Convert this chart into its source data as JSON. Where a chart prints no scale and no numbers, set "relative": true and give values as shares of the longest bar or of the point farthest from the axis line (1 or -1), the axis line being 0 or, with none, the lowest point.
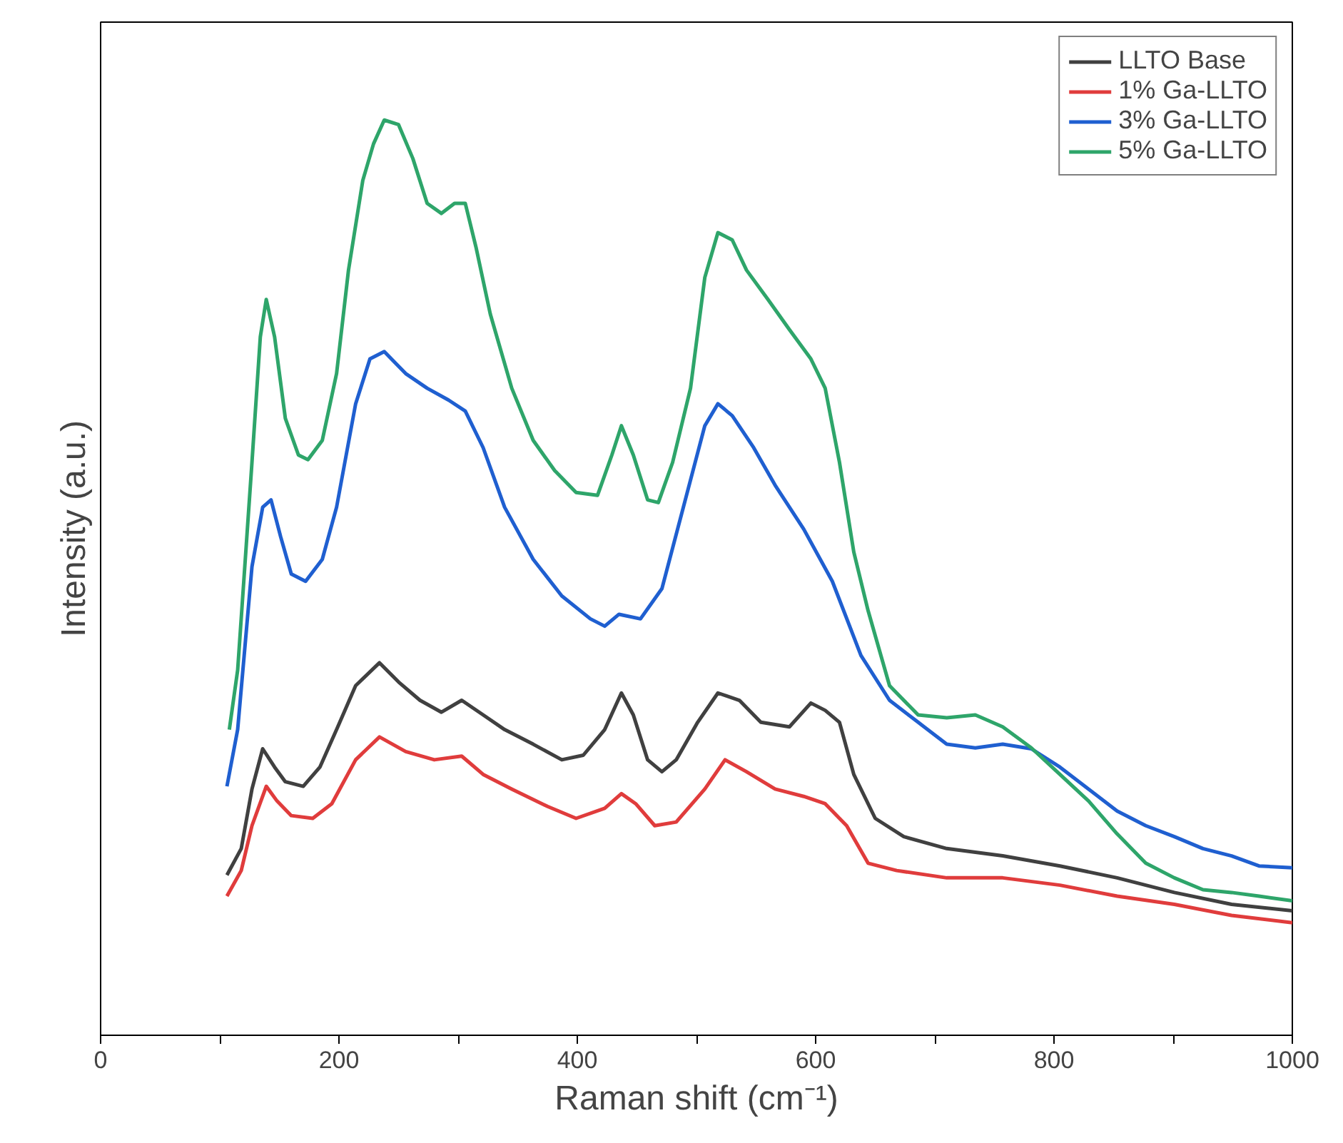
{
  "chart_data": {
    "type": "line",
    "relative": true,
    "xlabel": "Raman shift (cm⁻¹)",
    "ylabel": "Intensity (a.u.)",
    "xlim": [
      0,
      1000
    ],
    "xticks": [
      0,
      {
        "value": 100,
        "label": null
      },
      200,
      {
        "value": 300,
        "label": null
      },
      400,
      {
        "value": 500,
        "label": null
      },
      600,
      {
        "value": 700,
        "label": null
      },
      800,
      {
        "value": 900,
        "label": null
      },
      1000
    ],
    "grid": false,
    "legend": "top right",
    "line_style": "solid",
    "series": [
      {
        "name": "LLTO Base",
        "color": "#404040",
        "x": [
          106,
          118,
          127,
          136,
          146,
          155,
          170,
          184,
          198,
          214,
          234,
          250,
          268,
          286,
          303,
          321,
          339,
          363,
          387,
          405,
          423,
          437,
          447,
          459,
          471,
          483,
          501,
          518,
          536,
          554,
          578,
          596,
          608,
          620,
          632,
          650,
          674,
          710,
          757,
          805,
          853,
          901,
          949,
          1000
        ],
        "values": [
          0.175,
          0.204,
          0.269,
          0.313,
          0.293,
          0.277,
          0.272,
          0.293,
          0.334,
          0.382,
          0.407,
          0.386,
          0.366,
          0.353,
          0.366,
          0.35,
          0.334,
          0.318,
          0.301,
          0.306,
          0.334,
          0.374,
          0.35,
          0.301,
          0.288,
          0.301,
          0.342,
          0.374,
          0.366,
          0.342,
          0.337,
          0.363,
          0.355,
          0.342,
          0.285,
          0.237,
          0.217,
          0.204,
          0.196,
          0.185,
          0.172,
          0.156,
          0.143,
          0.136
        ]
      },
      {
        "name": "1% Ga-LLTO",
        "color": "#e03c3c",
        "x": [
          106,
          118,
          127,
          139,
          148,
          160,
          178,
          194,
          214,
          234,
          256,
          280,
          303,
          321,
          345,
          375,
          399,
          423,
          437,
          449,
          465,
          483,
          507,
          524,
          542,
          566,
          590,
          608,
          626,
          644,
          668,
          710,
          757,
          805,
          853,
          901,
          949,
          1000
        ],
        "values": [
          0.152,
          0.18,
          0.229,
          0.272,
          0.256,
          0.24,
          0.237,
          0.253,
          0.301,
          0.326,
          0.31,
          0.301,
          0.305,
          0.285,
          0.269,
          0.25,
          0.237,
          0.248,
          0.264,
          0.253,
          0.229,
          0.233,
          0.269,
          0.301,
          0.288,
          0.269,
          0.261,
          0.253,
          0.229,
          0.188,
          0.18,
          0.172,
          0.172,
          0.164,
          0.152,
          0.143,
          0.131,
          0.123
        ]
      },
      {
        "name": "3% Ga-LLTO",
        "color": "#1f5fd0",
        "x": [
          106,
          115,
          127,
          136,
          143,
          151,
          160,
          172,
          186,
          198,
          214,
          226,
          238,
          256,
          274,
          292,
          306,
          321,
          339,
          363,
          387,
          411,
          423,
          435,
          453,
          471,
          489,
          507,
          518,
          530,
          548,
          566,
          590,
          614,
          638,
          662,
          686,
          710,
          734,
          757,
          781,
          805,
          829,
          853,
          877,
          901,
          925,
          949,
          972,
          1000
        ],
        "values": [
          0.272,
          0.334,
          0.512,
          0.577,
          0.585,
          0.545,
          0.504,
          0.496,
          0.52,
          0.577,
          0.69,
          0.739,
          0.747,
          0.723,
          0.707,
          0.694,
          0.682,
          0.642,
          0.577,
          0.52,
          0.48,
          0.455,
          0.447,
          0.46,
          0.455,
          0.488,
          0.577,
          0.666,
          0.69,
          0.677,
          0.642,
          0.601,
          0.553,
          0.496,
          0.415,
          0.366,
          0.342,
          0.318,
          0.314,
          0.318,
          0.313,
          0.293,
          0.269,
          0.245,
          0.229,
          0.217,
          0.204,
          0.196,
          0.185,
          0.183
        ]
      },
      {
        "name": "5% Ga-LLTO",
        "color": "#2ea56a",
        "x": [
          108,
          115,
          127,
          134,
          139,
          146,
          155,
          166,
          174,
          186,
          198,
          208,
          220,
          229,
          238,
          250,
          262,
          274,
          286,
          297,
          306,
          315,
          327,
          345,
          363,
          381,
          399,
          417,
          429,
          437,
          447,
          459,
          468,
          480,
          495,
          507,
          518,
          530,
          542,
          560,
          578,
          596,
          608,
          620,
          632,
          644,
          662,
          686,
          710,
          734,
          757,
          781,
          805,
          829,
          853,
          877,
          901,
          925,
          949,
          972,
          1000
        ],
        "values": [
          0.334,
          0.399,
          0.626,
          0.763,
          0.804,
          0.763,
          0.674,
          0.634,
          0.629,
          0.65,
          0.723,
          0.836,
          0.934,
          0.974,
          1.0,
          0.995,
          0.958,
          0.909,
          0.898,
          0.909,
          0.909,
          0.861,
          0.788,
          0.707,
          0.65,
          0.617,
          0.593,
          0.59,
          0.634,
          0.666,
          0.634,
          0.585,
          0.582,
          0.626,
          0.707,
          0.828,
          0.877,
          0.869,
          0.836,
          0.804,
          0.771,
          0.739,
          0.707,
          0.626,
          0.528,
          0.464,
          0.382,
          0.35,
          0.347,
          0.35,
          0.337,
          0.314,
          0.285,
          0.256,
          0.22,
          0.188,
          0.172,
          0.159,
          0.156,
          0.152,
          0.147
        ]
      }
    ]
  }
}
